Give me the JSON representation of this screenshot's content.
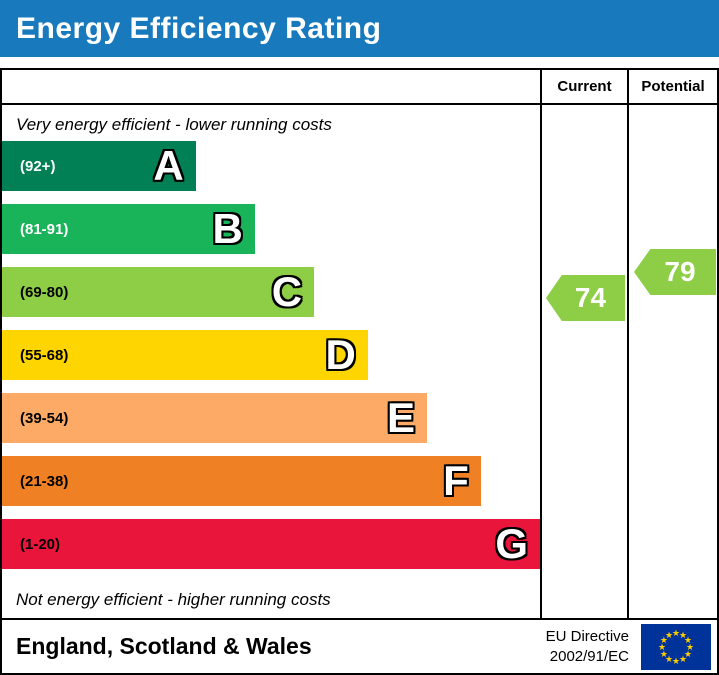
{
  "title": "Energy Efficiency Rating",
  "columns": {
    "current": "Current",
    "potential": "Potential"
  },
  "notes": {
    "top": "Very energy efficient - lower running costs",
    "bottom": "Not energy efficient - higher running costs"
  },
  "footer": {
    "region": "England, Scotland & Wales",
    "directive_line1": "EU Directive",
    "directive_line2": "2002/91/EC",
    "flag_icon": "eu-flag"
  },
  "accent": {
    "header_bg": "#1879bd",
    "eu_flag_blue": "#003399",
    "eu_flag_star": "#ffcc00"
  },
  "chart_data": {
    "type": "bar",
    "title": "Energy Efficiency Rating",
    "orientation": "horizontal",
    "bands": [
      {
        "letter": "A",
        "range": "(92+)",
        "color": "#008054",
        "text_color": "#ffffff",
        "width_pct": 36
      },
      {
        "letter": "B",
        "range": "(81-91)",
        "color": "#19b459",
        "text_color": "#ffffff",
        "width_pct": 47
      },
      {
        "letter": "C",
        "range": "(69-80)",
        "color": "#8dce46",
        "text_color": "#000000",
        "width_pct": 58
      },
      {
        "letter": "D",
        "range": "(55-68)",
        "color": "#ffd500",
        "text_color": "#000000",
        "width_pct": 68
      },
      {
        "letter": "E",
        "range": "(39-54)",
        "color": "#fcaa65",
        "text_color": "#000000",
        "width_pct": 79
      },
      {
        "letter": "F",
        "range": "(21-38)",
        "color": "#ef8023",
        "text_color": "#000000",
        "width_pct": 89
      },
      {
        "letter": "G",
        "range": "(1-20)",
        "color": "#e9153b",
        "text_color": "#000000",
        "width_pct": 100
      }
    ],
    "current": {
      "value": 74,
      "band": "C",
      "color": "#8dce46"
    },
    "potential": {
      "value": 79,
      "band": "C",
      "color": "#8dce46"
    }
  }
}
